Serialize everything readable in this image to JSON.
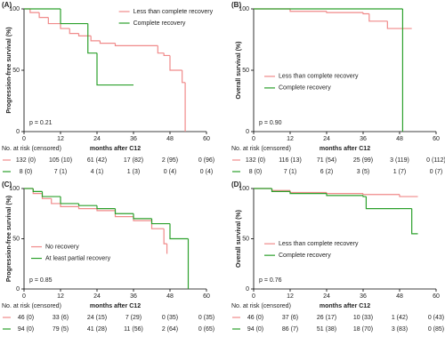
{
  "chart_data": [
    {
      "type": "step",
      "panel": "(A)",
      "ylabel": "Progression-free survival (%)",
      "xlabel": "months after C12",
      "annotation": "p = 0.21",
      "xlim": [
        0,
        60
      ],
      "xticks": [
        0,
        12,
        24,
        36,
        48,
        60
      ],
      "ylim": [
        0,
        100
      ],
      "yticks": [
        0,
        50,
        100
      ],
      "legend": "upper right",
      "series": [
        {
          "name": "Less than complete recovery",
          "color": "#f08a8a",
          "x": [
            0,
            2,
            5,
            8,
            12,
            15,
            18,
            22,
            25,
            30,
            44,
            46,
            48,
            52,
            53
          ],
          "values": [
            100,
            97,
            93,
            88,
            84,
            80,
            78,
            74,
            72,
            70,
            64,
            62,
            50,
            40,
            0
          ]
        },
        {
          "name": "Complete recovery",
          "color": "#2ca02c",
          "x": [
            0,
            12,
            21,
            24,
            36
          ],
          "values": [
            100,
            88,
            64,
            38,
            38
          ]
        }
      ],
      "risk_table": {
        "title": "No. at risk (censored)",
        "rows": [
          [
            "132 (0)",
            "105 (10)",
            "61 (42)",
            "17 (82)",
            "2 (95)",
            "0 (96)"
          ],
          [
            "8 (0)",
            "7 (1)",
            "4 (1)",
            "1 (3)",
            "0 (4)",
            "0 (4)"
          ]
        ]
      }
    },
    {
      "type": "step",
      "panel": "(B)",
      "ylabel": "Overall survival (%)",
      "xlabel": "months after C12",
      "annotation": "p = 0.90",
      "xlim": [
        0,
        60
      ],
      "xticks": [
        0,
        12,
        24,
        36,
        48,
        60
      ],
      "ylim": [
        0,
        100
      ],
      "yticks": [
        0,
        50,
        100
      ],
      "legend": "center left",
      "series": [
        {
          "name": "Less than complete recovery",
          "color": "#f08a8a",
          "x": [
            0,
            12,
            24,
            36,
            38,
            44,
            52
          ],
          "values": [
            100,
            98,
            97,
            96,
            90,
            84,
            84
          ]
        },
        {
          "name": "Complete recovery",
          "color": "#2ca02c",
          "x": [
            0,
            49
          ],
          "values": [
            100,
            0
          ]
        }
      ],
      "risk_table": {
        "title": "No. at risk (censored)",
        "rows": [
          [
            "132 (0)",
            "116 (13)",
            "71 (54)",
            "25 (99)",
            "3 (119)",
            "0 (112)"
          ],
          [
            "8 (0)",
            "7 (1)",
            "6 (2)",
            "3 (5)",
            "1 (7)",
            "0 (7)"
          ]
        ]
      }
    },
    {
      "type": "step",
      "panel": "(C)",
      "ylabel": "Progression-free survival (%)",
      "xlabel": "months after C12",
      "annotation": "p = 0.85",
      "xlim": [
        0,
        60
      ],
      "xticks": [
        0,
        12,
        24,
        36,
        48,
        60
      ],
      "ylim": [
        0,
        100
      ],
      "yticks": [
        0,
        50,
        100
      ],
      "legend": "lower left",
      "series": [
        {
          "name": "No recovery",
          "color": "#f08a8a",
          "x": [
            0,
            3,
            6,
            9,
            12,
            18,
            24,
            30,
            36,
            42,
            46,
            47
          ],
          "values": [
            100,
            95,
            90,
            85,
            82,
            80,
            78,
            72,
            68,
            60,
            45,
            35
          ]
        },
        {
          "name": "At least partial recovery",
          "color": "#2ca02c",
          "x": [
            0,
            3,
            6,
            12,
            18,
            24,
            30,
            36,
            42,
            48,
            54
          ],
          "values": [
            100,
            97,
            92,
            85,
            83,
            80,
            75,
            70,
            65,
            50,
            0
          ]
        }
      ],
      "risk_table": {
        "title": "No. at risk (censored)",
        "rows": [
          [
            "46 (0)",
            "33 (6)",
            "24 (15)",
            "7 (29)",
            "0 (35)",
            "0 (35)"
          ],
          [
            "94 (0)",
            "79 (5)",
            "41 (28)",
            "11 (56)",
            "2 (64)",
            "0 (65)"
          ]
        ]
      }
    },
    {
      "type": "step",
      "panel": "(D)",
      "ylabel": "Overall survival (%)",
      "xlabel": "months after C12",
      "annotation": "p = 0.76",
      "xlim": [
        0,
        60
      ],
      "xticks": [
        0,
        12,
        24,
        36,
        48,
        60
      ],
      "ylim": [
        0,
        100
      ],
      "yticks": [
        0,
        50,
        100
      ],
      "legend": "center left",
      "series": [
        {
          "name": "Less than complete recovery",
          "color": "#f08a8a",
          "x": [
            0,
            6,
            12,
            24,
            36,
            48,
            54
          ],
          "values": [
            100,
            98,
            96,
            95,
            94,
            92,
            92
          ]
        },
        {
          "name": "Complete recovery",
          "color": "#2ca02c",
          "x": [
            0,
            6,
            12,
            24,
            36,
            37,
            48,
            52,
            54
          ],
          "values": [
            100,
            97,
            95,
            93,
            92,
            80,
            80,
            55,
            55
          ]
        }
      ],
      "risk_table": {
        "title": "No. at risk (censored)",
        "rows": [
          [
            "46 (0)",
            "37 (6)",
            "26 (17)",
            "10 (33)",
            "1 (42)",
            "0 (43)"
          ],
          [
            "94 (0)",
            "86 (7)",
            "51 (38)",
            "18 (70)",
            "3 (83)",
            "0 (85)"
          ]
        ]
      }
    }
  ]
}
